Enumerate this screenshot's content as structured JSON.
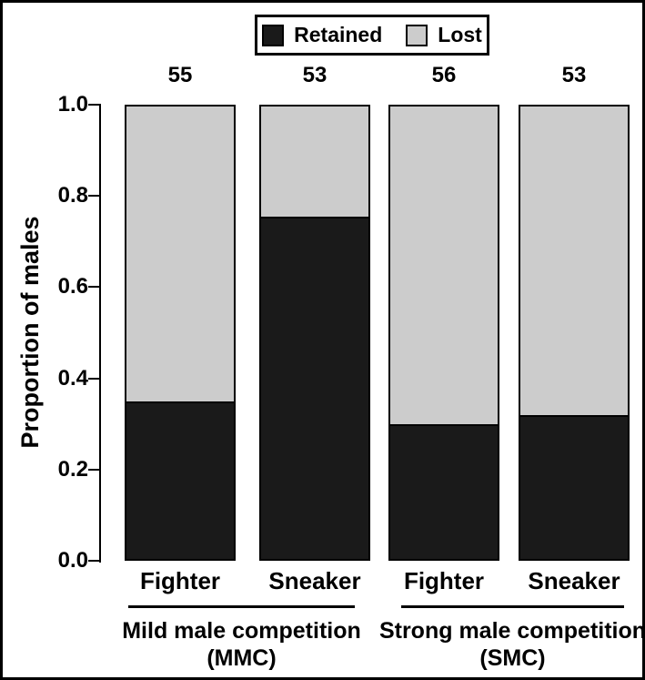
{
  "figure": {
    "background": "#ffffff",
    "border_color": "#000000"
  },
  "legend": {
    "items": [
      {
        "label": "Retained",
        "color": "#1a1a1a"
      },
      {
        "label": "Lost",
        "color": "#cccccc"
      }
    ]
  },
  "chart_data": {
    "type": "bar",
    "stacked": true,
    "title": "",
    "xlabel": "",
    "ylabel": "Proportion of males",
    "ylim": [
      0,
      1
    ],
    "yticks": [
      0.0,
      0.2,
      0.4,
      0.6,
      0.8,
      1.0
    ],
    "grid": false,
    "legend_position": "top-center",
    "categories": [
      "Fighter",
      "Sneaker",
      "Fighter",
      "Sneaker"
    ],
    "counts": [
      55,
      53,
      56,
      53
    ],
    "series": [
      {
        "name": "Retained",
        "color": "#1a1a1a",
        "values": [
          0.35,
          0.755,
          0.3,
          0.32
        ]
      },
      {
        "name": "Lost",
        "color": "#cccccc",
        "values": [
          0.65,
          0.245,
          0.7,
          0.68
        ]
      }
    ],
    "groups": [
      {
        "label": "Mild male competition",
        "abbrev": "(MMC)",
        "bars": [
          0,
          1
        ]
      },
      {
        "label": "Strong male competition",
        "abbrev": "(SMC)",
        "bars": [
          2,
          3
        ]
      }
    ]
  }
}
